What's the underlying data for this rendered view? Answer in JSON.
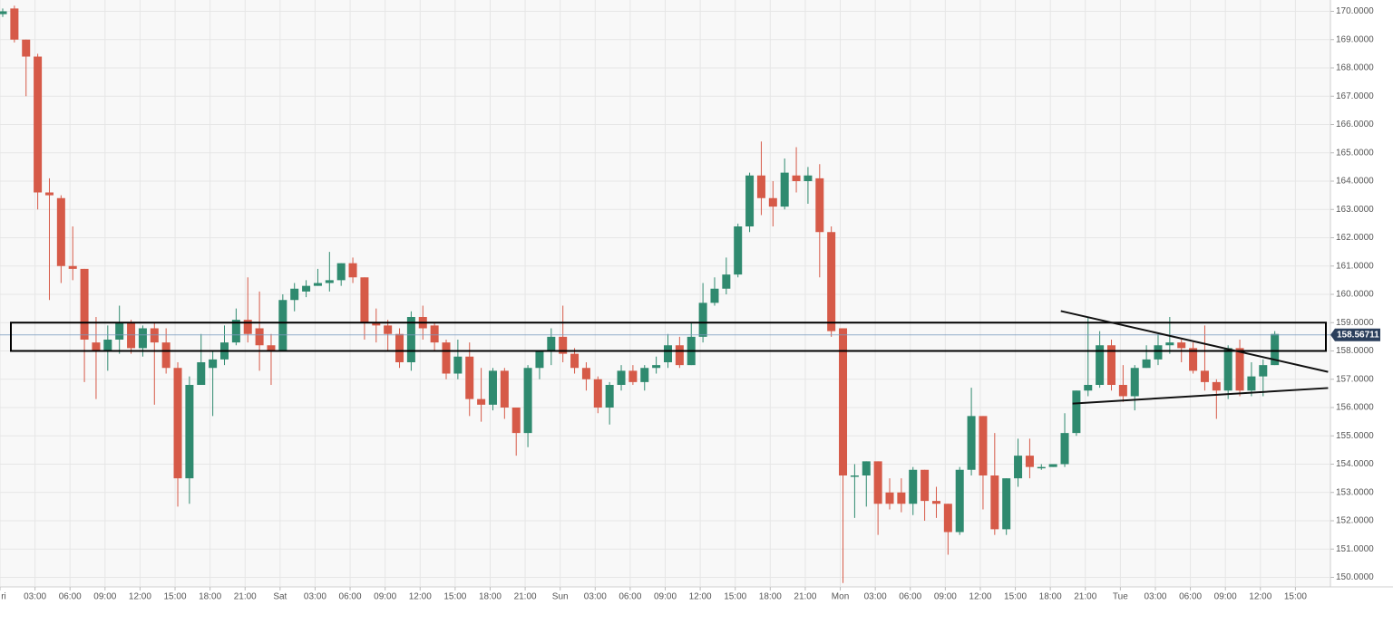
{
  "chart_data": {
    "type": "candlestick",
    "up_color": "#2f8a6f",
    "down_color": "#d65a48",
    "grid": true,
    "xlim": [
      0,
      114
    ],
    "ylim": [
      149.6,
      170.4
    ],
    "open": [
      169.9,
      170.1,
      169.0,
      168.4,
      163.6,
      163.4,
      161.0,
      160.9,
      158.3,
      158.0,
      158.4,
      159.0,
      158.1,
      158.8,
      158.3,
      157.4,
      153.5,
      156.8,
      157.4,
      157.7,
      158.3,
      159.1,
      158.8,
      158.2,
      158.0,
      159.8,
      160.1,
      160.3,
      160.4,
      160.5,
      161.1,
      160.6,
      159.0,
      158.9,
      158.6,
      157.6,
      159.2,
      158.9,
      158.3,
      157.2,
      157.8,
      156.3,
      156.1,
      157.3,
      156.0,
      155.1,
      157.4,
      158.0,
      158.5,
      157.9,
      157.4,
      157.0,
      156.0,
      156.8,
      157.3,
      156.9,
      157.4,
      157.6,
      158.2,
      157.5,
      158.5,
      159.7,
      160.2,
      160.7,
      162.4,
      164.2,
      163.4,
      163.1,
      164.2,
      164.0,
      164.1,
      162.2,
      158.8,
      153.6,
      153.6,
      154.1,
      153.0,
      153.0,
      152.6,
      153.8,
      152.7,
      152.6,
      151.6,
      153.8,
      155.7,
      153.6,
      151.7,
      153.5,
      154.3,
      153.9,
      153.9,
      154.0,
      155.1,
      156.6,
      156.8,
      158.2,
      156.8,
      156.4,
      157.4,
      157.7,
      158.2,
      158.3,
      158.1,
      157.3,
      156.9,
      156.6,
      158.1,
      156.6,
      157.1,
      157.5
    ],
    "high": [
      170.1,
      170.2,
      169.0,
      168.5,
      164.1,
      163.5,
      162.4,
      160.9,
      159.2,
      158.9,
      159.6,
      159.1,
      158.9,
      159.0,
      158.8,
      157.6,
      157.1,
      158.6,
      158.0,
      158.9,
      159.5,
      160.6,
      160.1,
      158.6,
      160.0,
      160.4,
      160.5,
      160.9,
      161.5,
      161.1,
      161.3,
      160.6,
      159.5,
      159.1,
      158.8,
      159.4,
      159.6,
      159.0,
      158.4,
      158.4,
      158.3,
      157.4,
      157.4,
      157.4,
      156.0,
      157.5,
      158.0,
      158.8,
      159.6,
      158.1,
      157.6,
      157.1,
      156.9,
      157.5,
      157.5,
      157.5,
      157.8,
      158.6,
      158.5,
      159.0,
      160.4,
      160.6,
      161.3,
      162.5,
      164.3,
      165.4,
      164.0,
      164.8,
      165.2,
      164.5,
      164.6,
      162.4,
      158.8,
      154.0,
      154.1,
      154.1,
      153.5,
      153.5,
      153.9,
      153.8,
      153.2,
      152.6,
      153.9,
      156.7,
      155.7,
      155.1,
      153.5,
      154.9,
      154.9,
      154.0,
      154.0,
      155.8,
      156.6,
      159.2,
      158.7,
      158.4,
      157.5,
      157.5,
      158.2,
      158.6,
      159.2,
      158.4,
      158.3,
      158.9,
      157.0,
      158.2,
      158.4,
      157.6,
      157.7,
      158.7
    ],
    "low": [
      169.8,
      168.9,
      167.0,
      163.0,
      159.8,
      160.4,
      160.5,
      156.9,
      156.3,
      157.3,
      157.9,
      157.9,
      157.8,
      156.1,
      157.2,
      152.5,
      152.6,
      156.8,
      155.7,
      157.5,
      158.2,
      158.3,
      157.3,
      156.8,
      158.0,
      159.4,
      159.9,
      160.3,
      160.1,
      160.3,
      160.4,
      158.4,
      158.3,
      158.0,
      157.4,
      157.3,
      158.4,
      158.0,
      157.0,
      157.0,
      155.7,
      155.5,
      155.9,
      155.6,
      154.3,
      154.6,
      157.0,
      157.5,
      157.6,
      157.2,
      156.6,
      155.8,
      155.4,
      156.6,
      156.8,
      156.6,
      157.2,
      157.4,
      157.4,
      157.5,
      158.3,
      159.6,
      160.0,
      160.6,
      162.2,
      162.8,
      162.4,
      163.0,
      163.6,
      163.2,
      160.6,
      158.5,
      149.8,
      152.1,
      152.5,
      151.5,
      152.4,
      152.3,
      152.2,
      152.0,
      152.1,
      150.8,
      151.5,
      153.6,
      152.4,
      151.5,
      151.5,
      153.2,
      153.5,
      153.8,
      153.9,
      153.9,
      155.0,
      156.4,
      156.7,
      156.6,
      156.2,
      155.9,
      157.4,
      157.5,
      157.9,
      157.6,
      157.2,
      156.6,
      155.6,
      156.3,
      156.4,
      156.4,
      156.4,
      157.5
    ],
    "close": [
      170.0,
      169.0,
      168.4,
      163.6,
      163.5,
      161.0,
      160.9,
      158.4,
      158.0,
      158.4,
      159.0,
      158.1,
      158.8,
      158.3,
      157.4,
      153.5,
      156.8,
      157.6,
      157.7,
      158.3,
      159.1,
      158.6,
      158.2,
      158.0,
      159.8,
      160.2,
      160.3,
      160.4,
      160.5,
      161.1,
      160.6,
      159.0,
      158.9,
      158.6,
      157.6,
      159.2,
      158.8,
      158.3,
      157.2,
      157.8,
      156.3,
      156.1,
      157.3,
      156.0,
      155.1,
      157.4,
      158.0,
      158.5,
      157.9,
      157.4,
      157.0,
      156.0,
      156.8,
      157.3,
      156.9,
      157.4,
      157.5,
      158.2,
      157.5,
      158.5,
      159.7,
      160.2,
      160.7,
      162.4,
      164.2,
      163.4,
      163.1,
      164.3,
      164.0,
      164.2,
      162.2,
      158.7,
      153.6,
      153.6,
      154.1,
      152.6,
      152.6,
      152.6,
      153.8,
      152.7,
      152.6,
      151.6,
      153.8,
      155.7,
      153.6,
      151.7,
      153.5,
      154.3,
      153.9,
      153.9,
      154.0,
      155.1,
      156.6,
      156.8,
      158.2,
      156.8,
      156.4,
      157.4,
      157.7,
      158.2,
      158.3,
      158.1,
      157.3,
      156.9,
      156.6,
      158.1,
      156.6,
      157.1,
      157.5,
      158.6
    ],
    "xticks": [
      {
        "value": 0,
        "label": "ri"
      },
      {
        "value": 3,
        "label": "03:00"
      },
      {
        "value": 6,
        "label": "06:00"
      },
      {
        "value": 9,
        "label": "09:00"
      },
      {
        "value": 12,
        "label": "12:00"
      },
      {
        "value": 15,
        "label": "15:00"
      },
      {
        "value": 18,
        "label": "18:00"
      },
      {
        "value": 21,
        "label": "21:00"
      },
      {
        "value": 24,
        "label": "Sat"
      },
      {
        "value": 27,
        "label": "03:00"
      },
      {
        "value": 30,
        "label": "06:00"
      },
      {
        "value": 33,
        "label": "09:00"
      },
      {
        "value": 36,
        "label": "12:00"
      },
      {
        "value": 39,
        "label": "15:00"
      },
      {
        "value": 42,
        "label": "18:00"
      },
      {
        "value": 45,
        "label": "21:00"
      },
      {
        "value": 48,
        "label": "Sun"
      },
      {
        "value": 51,
        "label": "03:00"
      },
      {
        "value": 54,
        "label": "06:00"
      },
      {
        "value": 57,
        "label": "09:00"
      },
      {
        "value": 60,
        "label": "12:00"
      },
      {
        "value": 63,
        "label": "15:00"
      },
      {
        "value": 66,
        "label": "18:00"
      },
      {
        "value": 69,
        "label": "21:00"
      },
      {
        "value": 72,
        "label": "Mon"
      },
      {
        "value": 75,
        "label": "03:00"
      },
      {
        "value": 78,
        "label": "06:00"
      },
      {
        "value": 81,
        "label": "09:00"
      },
      {
        "value": 84,
        "label": "12:00"
      },
      {
        "value": 87,
        "label": "15:00"
      },
      {
        "value": 90,
        "label": "18:00"
      },
      {
        "value": 93,
        "label": "21:00"
      },
      {
        "value": 96,
        "label": "Tue"
      },
      {
        "value": 99,
        "label": "03:00"
      },
      {
        "value": 102,
        "label": "06:00"
      },
      {
        "value": 105,
        "label": "09:00"
      },
      {
        "value": 108,
        "label": "12:00"
      },
      {
        "value": 111,
        "label": "15:00"
      }
    ],
    "yticks": [
      {
        "value": 150,
        "label": "150.0000"
      },
      {
        "value": 151,
        "label": "151.0000"
      },
      {
        "value": 152,
        "label": "152.0000"
      },
      {
        "value": 153,
        "label": "153.0000"
      },
      {
        "value": 154,
        "label": "154.0000"
      },
      {
        "value": 155,
        "label": "155.0000"
      },
      {
        "value": 156,
        "label": "156.0000"
      },
      {
        "value": 157,
        "label": "157.0000"
      },
      {
        "value": 158,
        "label": "158.0000"
      },
      {
        "value": 159,
        "label": "159.0000"
      },
      {
        "value": 160,
        "label": "160.0000"
      },
      {
        "value": 161,
        "label": "161.0000"
      },
      {
        "value": 162,
        "label": "162.0000"
      },
      {
        "value": 163,
        "label": "163.0000"
      },
      {
        "value": 164,
        "label": "164.0000"
      },
      {
        "value": 165,
        "label": "165.0000"
      },
      {
        "value": 166,
        "label": "166.0000"
      },
      {
        "value": 167,
        "label": "167.0000"
      },
      {
        "value": 168,
        "label": "168.0000"
      },
      {
        "value": 169,
        "label": "169.0000"
      },
      {
        "value": 170,
        "label": "170.0000"
      }
    ],
    "last_price": 158.56711,
    "zone": {
      "low": 158.0,
      "high": 159.0
    },
    "trendlines": [
      {
        "x": [
          90.9,
          113.8
        ],
        "y": [
          159.41,
          157.26
        ]
      },
      {
        "x": [
          91.9,
          113.8
        ],
        "y": [
          156.14,
          156.69
        ]
      }
    ]
  }
}
